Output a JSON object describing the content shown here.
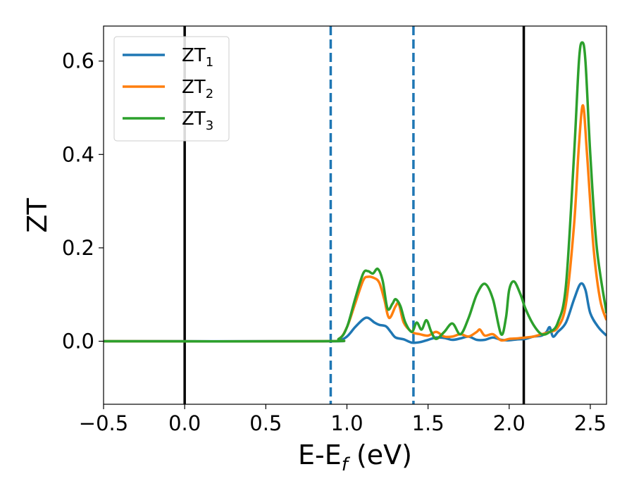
{
  "chart_data": {
    "type": "line",
    "xlabel": "E-E",
    "xlabel_sub": "f",
    "xlabel_unit": " (eV)",
    "ylabel": "ZT",
    "xlim": [
      -0.5,
      2.6
    ],
    "ylim": [
      -0.135,
      0.675
    ],
    "xticks": [
      -0.5,
      0.0,
      0.5,
      1.0,
      1.5,
      2.0,
      2.5
    ],
    "xtick_labels": [
      "−0.5",
      "0.0",
      "0.5",
      "1.0",
      "1.5",
      "2.0",
      "2.5"
    ],
    "yticks": [
      0.0,
      0.2,
      0.4,
      0.6
    ],
    "ytick_labels": [
      "0.0",
      "0.2",
      "0.4",
      "0.6"
    ],
    "grid": false,
    "legend_position": "top-left",
    "vertical_lines": [
      {
        "x": 0.0,
        "color": "#000000",
        "style": "solid"
      },
      {
        "x": 0.9,
        "color": "#1f77b4",
        "style": "dashed"
      },
      {
        "x": 1.41,
        "color": "#1f77b4",
        "style": "dashed"
      },
      {
        "x": 2.09,
        "color": "#000000",
        "style": "solid"
      }
    ],
    "series": [
      {
        "name": "ZT",
        "sub": "1",
        "color": "#1f77b4",
        "points": [
          [
            -0.5,
            0
          ],
          [
            0.85,
            0
          ],
          [
            0.95,
            0.002
          ],
          [
            1.0,
            0.01
          ],
          [
            1.05,
            0.03
          ],
          [
            1.1,
            0.047
          ],
          [
            1.13,
            0.05
          ],
          [
            1.17,
            0.04
          ],
          [
            1.2,
            0.035
          ],
          [
            1.24,
            0.032
          ],
          [
            1.27,
            0.02
          ],
          [
            1.3,
            0.008
          ],
          [
            1.35,
            0.004
          ],
          [
            1.4,
            -0.003
          ],
          [
            1.45,
            -0.002
          ],
          [
            1.5,
            0.003
          ],
          [
            1.55,
            0.008
          ],
          [
            1.6,
            0.007
          ],
          [
            1.65,
            0.003
          ],
          [
            1.7,
            0.006
          ],
          [
            1.75,
            0.01
          ],
          [
            1.8,
            0.003
          ],
          [
            1.85,
            0.003
          ],
          [
            1.9,
            0.008
          ],
          [
            1.95,
            0.003
          ],
          [
            2.0,
            0.002
          ],
          [
            2.05,
            0.004
          ],
          [
            2.1,
            0.005
          ],
          [
            2.15,
            0.01
          ],
          [
            2.2,
            0.012
          ],
          [
            2.23,
            0.02
          ],
          [
            2.25,
            0.03
          ],
          [
            2.27,
            0.01
          ],
          [
            2.3,
            0.02
          ],
          [
            2.35,
            0.04
          ],
          [
            2.4,
            0.09
          ],
          [
            2.44,
            0.123
          ],
          [
            2.47,
            0.11
          ],
          [
            2.5,
            0.06
          ],
          [
            2.55,
            0.03
          ],
          [
            2.6,
            0.012
          ]
        ]
      },
      {
        "name": "ZT",
        "sub": "2",
        "color": "#ff7f0e",
        "points": [
          [
            -0.5,
            0
          ],
          [
            0.85,
            0
          ],
          [
            0.95,
            0.005
          ],
          [
            1.0,
            0.03
          ],
          [
            1.05,
            0.08
          ],
          [
            1.1,
            0.13
          ],
          [
            1.13,
            0.138
          ],
          [
            1.17,
            0.135
          ],
          [
            1.2,
            0.125
          ],
          [
            1.23,
            0.09
          ],
          [
            1.26,
            0.05
          ],
          [
            1.3,
            0.075
          ],
          [
            1.32,
            0.08
          ],
          [
            1.35,
            0.04
          ],
          [
            1.4,
            0.02
          ],
          [
            1.45,
            0.015
          ],
          [
            1.5,
            0.012
          ],
          [
            1.55,
            0.02
          ],
          [
            1.6,
            0.01
          ],
          [
            1.65,
            0.01
          ],
          [
            1.7,
            0.015
          ],
          [
            1.75,
            0.01
          ],
          [
            1.8,
            0.02
          ],
          [
            1.82,
            0.025
          ],
          [
            1.85,
            0.012
          ],
          [
            1.9,
            0.015
          ],
          [
            1.95,
            0.002
          ],
          [
            2.0,
            0.005
          ],
          [
            2.05,
            0.006
          ],
          [
            2.1,
            0.008
          ],
          [
            2.15,
            0.01
          ],
          [
            2.2,
            0.015
          ],
          [
            2.25,
            0.02
          ],
          [
            2.3,
            0.03
          ],
          [
            2.35,
            0.08
          ],
          [
            2.4,
            0.25
          ],
          [
            2.43,
            0.42
          ],
          [
            2.455,
            0.505
          ],
          [
            2.48,
            0.4
          ],
          [
            2.52,
            0.2
          ],
          [
            2.56,
            0.09
          ],
          [
            2.6,
            0.045
          ]
        ]
      },
      {
        "name": "ZT",
        "sub": "3",
        "color": "#2ca02c",
        "points": [
          [
            -0.5,
            0
          ],
          [
            0.85,
            0
          ],
          [
            0.95,
            0.005
          ],
          [
            1.0,
            0.03
          ],
          [
            1.05,
            0.09
          ],
          [
            1.1,
            0.145
          ],
          [
            1.13,
            0.15
          ],
          [
            1.16,
            0.145
          ],
          [
            1.19,
            0.155
          ],
          [
            1.22,
            0.13
          ],
          [
            1.25,
            0.07
          ],
          [
            1.28,
            0.08
          ],
          [
            1.3,
            0.09
          ],
          [
            1.33,
            0.075
          ],
          [
            1.36,
            0.04
          ],
          [
            1.4,
            0.02
          ],
          [
            1.43,
            0.04
          ],
          [
            1.46,
            0.025
          ],
          [
            1.49,
            0.045
          ],
          [
            1.52,
            0.02
          ],
          [
            1.55,
            0.005
          ],
          [
            1.6,
            0.02
          ],
          [
            1.65,
            0.038
          ],
          [
            1.7,
            0.015
          ],
          [
            1.75,
            0.05
          ],
          [
            1.8,
            0.1
          ],
          [
            1.85,
            0.123
          ],
          [
            1.9,
            0.09
          ],
          [
            1.95,
            0.015
          ],
          [
            1.98,
            0.05
          ],
          [
            2.0,
            0.11
          ],
          [
            2.03,
            0.128
          ],
          [
            2.07,
            0.1
          ],
          [
            2.1,
            0.07
          ],
          [
            2.15,
            0.035
          ],
          [
            2.2,
            0.015
          ],
          [
            2.25,
            0.02
          ],
          [
            2.3,
            0.04
          ],
          [
            2.35,
            0.12
          ],
          [
            2.4,
            0.4
          ],
          [
            2.43,
            0.6
          ],
          [
            2.45,
            0.64
          ],
          [
            2.47,
            0.6
          ],
          [
            2.5,
            0.4
          ],
          [
            2.54,
            0.2
          ],
          [
            2.6,
            0.06
          ]
        ]
      }
    ]
  }
}
